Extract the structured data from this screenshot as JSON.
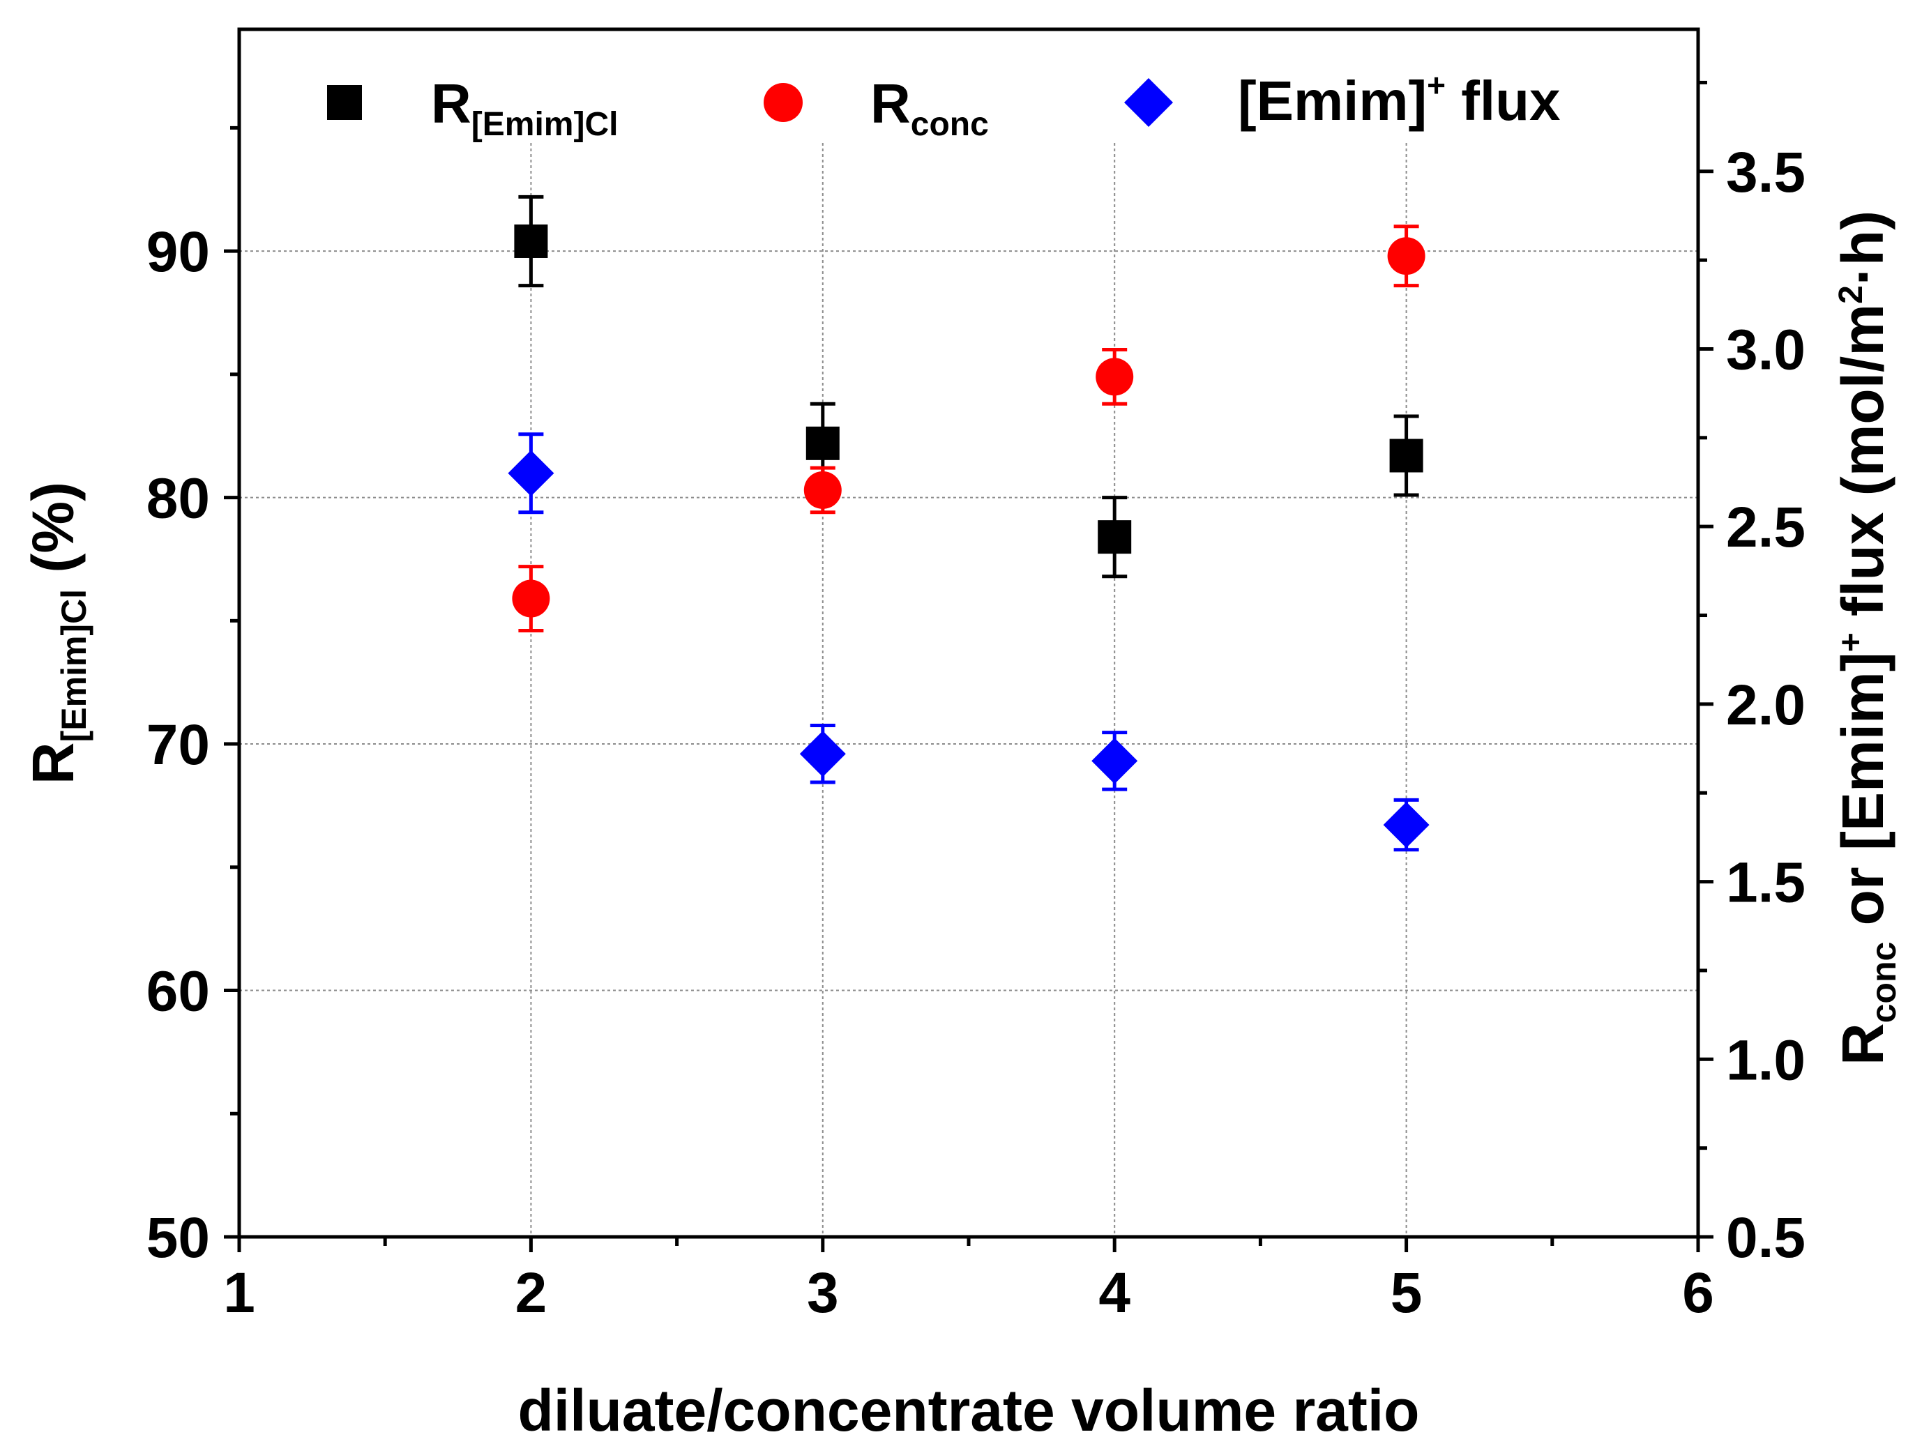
{
  "chart_data": {
    "type": "scatter",
    "title": "",
    "xlabel": "diluate/concentrate volume ratio",
    "ylabel_left": {
      "main": "R",
      "sub": "[Emim]Cl",
      "suffix": " (%)"
    },
    "ylabel_right": {
      "r": "R",
      "r_sub": "conc",
      "mid": " or [Emim]",
      "sup": "+",
      "end": " flux (mol/m",
      "sup2": "2",
      "tail": "·h)"
    },
    "xlim": [
      1,
      6
    ],
    "ylim_left": [
      50,
      99
    ],
    "ylim_right": [
      0.5,
      3.9
    ],
    "x_ticks": [
      "1",
      "2",
      "3",
      "4",
      "5",
      "6"
    ],
    "y_left_ticks": [
      "50",
      "60",
      "70",
      "80",
      "90"
    ],
    "y_right_ticks": [
      "0.5",
      "1.0",
      "1.5",
      "2.0",
      "2.5",
      "3.0",
      "3.5"
    ],
    "grid": true,
    "series": [
      {
        "name": "R[Emim]Cl",
        "legend": {
          "main": "R",
          "sub": "[Emim]Cl"
        },
        "axis": "left",
        "marker": "square",
        "color": "#000000",
        "x": [
          2,
          3,
          4,
          5
        ],
        "y": [
          90.4,
          82.2,
          78.4,
          81.7
        ],
        "err": [
          1.8,
          1.6,
          1.6,
          1.6
        ]
      },
      {
        "name": "Rconc",
        "legend": {
          "main": "R",
          "sub": "conc"
        },
        "axis": "left",
        "marker": "circle",
        "color": "#ff0000",
        "x": [
          2,
          3,
          4,
          5
        ],
        "y": [
          75.9,
          80.3,
          84.9,
          89.8
        ],
        "err": [
          1.3,
          0.9,
          1.1,
          1.2
        ]
      },
      {
        "name": "[Emim]+ flux",
        "legend": {
          "main": "[Emim]",
          "sup": "+",
          "rest": " flux"
        },
        "axis": "right",
        "marker": "diamond",
        "color": "#0000ff",
        "x": [
          2,
          3,
          4,
          5
        ],
        "y": [
          2.65,
          1.86,
          1.84,
          1.66
        ],
        "err": [
          0.11,
          0.08,
          0.08,
          0.07
        ]
      }
    ]
  }
}
